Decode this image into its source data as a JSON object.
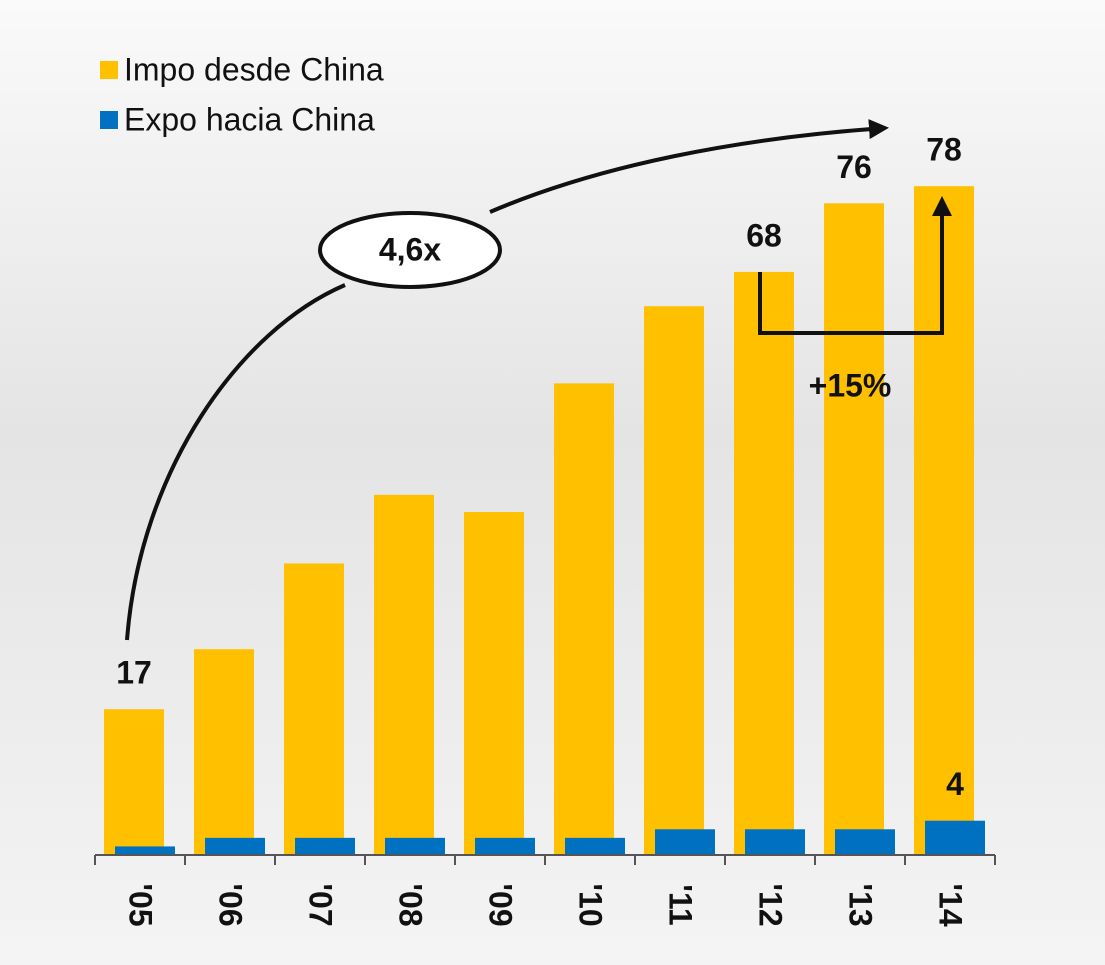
{
  "chart_data": {
    "type": "bar",
    "categories": [
      "'05",
      "'06",
      "'07",
      "'08",
      "'09",
      "'10",
      "'11",
      "'12",
      "'13",
      "'14"
    ],
    "series": [
      {
        "name": "Impo desde China",
        "color": "#ffc000",
        "values": [
          17,
          24,
          34,
          42,
          40,
          55,
          64,
          68,
          76,
          78
        ],
        "value_labels": [
          "17",
          null,
          null,
          null,
          null,
          null,
          null,
          "68",
          "76",
          "78"
        ]
      },
      {
        "name": "Expo hacia China",
        "color": "#0070c0",
        "values": [
          1,
          2,
          2,
          2,
          2,
          2,
          3,
          3,
          3,
          4
        ],
        "value_labels": [
          null,
          null,
          null,
          null,
          null,
          null,
          null,
          null,
          null,
          "4"
        ]
      }
    ],
    "ylim": [
      0,
      80
    ],
    "legend": "top-left",
    "annotations": [
      "4,6x",
      "+15%"
    ]
  }
}
